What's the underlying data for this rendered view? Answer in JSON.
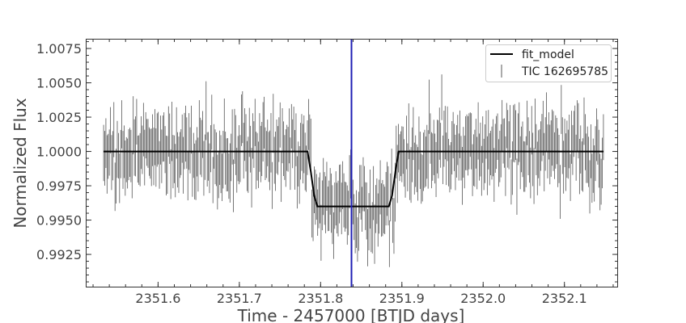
{
  "chart_data": {
    "type": "line",
    "xlabel": "Time - 2457000 [BTJD days]",
    "ylabel": "Normalized Flux",
    "xlim": [
      2351.512,
      2352.165
    ],
    "ylim": [
      0.99015,
      1.00815
    ],
    "xticks": [
      2351.6,
      2351.7,
      2351.8,
      2351.9,
      2352.0,
      2352.1
    ],
    "xtick_labels": [
      "2351.6",
      "2351.7",
      "2351.8",
      "2351.9",
      "2352.0",
      "2352.1"
    ],
    "yticks": [
      0.9925,
      0.995,
      0.9975,
      1.0,
      1.0025,
      1.005,
      1.0075
    ],
    "ytick_labels": [
      "0.9925",
      "0.9950",
      "0.9975",
      "1.0000",
      "1.0025",
      "1.0050",
      "1.0075"
    ],
    "grid": false,
    "legend_position": "top-right",
    "vertical_line": {
      "x": 2351.838,
      "color": "#1f1fb4"
    },
    "series": [
      {
        "name": "fit_model",
        "kind": "line",
        "color": "#000000",
        "x": [
          2351.533,
          2351.784,
          2351.788,
          2351.792,
          2351.796,
          2351.884,
          2351.888,
          2351.892,
          2351.896,
          2352.148
        ],
        "y": [
          1.0,
          1.0,
          0.9985,
          0.9968,
          0.996,
          0.996,
          0.9968,
          0.9985,
          1.0,
          1.0
        ]
      },
      {
        "name": "TIC 162695785",
        "kind": "errorbar",
        "color": "#555555",
        "x_start": 2351.533,
        "x_end": 2352.148,
        "count": 440,
        "baseline": 1.0,
        "in_transit_level": 0.996,
        "transit_start": 2351.788,
        "transit_end": 2351.892,
        "typical_error": 0.0019
      }
    ]
  }
}
